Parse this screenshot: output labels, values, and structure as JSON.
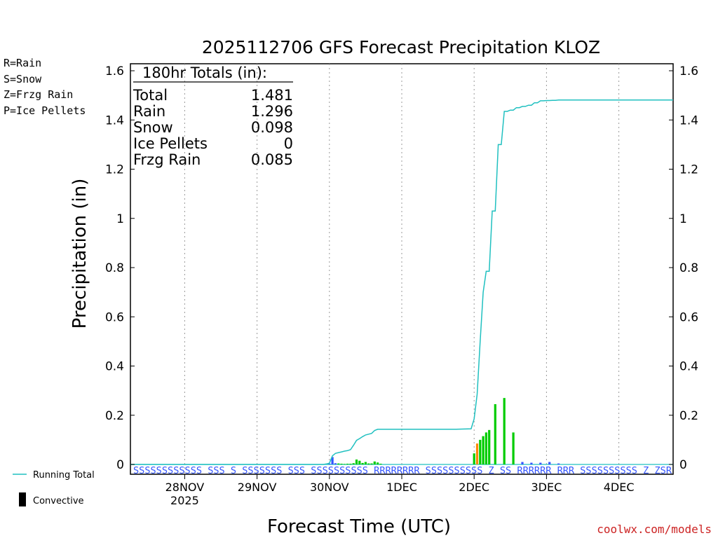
{
  "chart_data": {
    "type": "bar",
    "title": "2025112706 GFS Forecast Precipitation KLOZ",
    "xlabel": "Forecast Time (UTC)",
    "ylabel": "Precipitation (in)",
    "ylim": [
      0,
      1.6
    ],
    "y_ticks": [
      0,
      0.2,
      0.4,
      0.6,
      0.8,
      1,
      1.2,
      1.4,
      1.6
    ],
    "y_tick_labels": [
      "0",
      "0.2",
      "0.4",
      "0.6",
      "0.8",
      "1",
      "1.2",
      "1.4",
      "1.6"
    ],
    "x_range_hours": [
      0,
      180
    ],
    "x_ticks": [
      {
        "hour": 18,
        "label": "28NOV",
        "sublabel": "2025"
      },
      {
        "hour": 42,
        "label": "29NOV",
        "sublabel": ""
      },
      {
        "hour": 66,
        "label": "30NOV",
        "sublabel": ""
      },
      {
        "hour": 90,
        "label": "1DEC",
        "sublabel": ""
      },
      {
        "hour": 114,
        "label": "2DEC",
        "sublabel": ""
      },
      {
        "hour": 138,
        "label": "3DEC",
        "sublabel": ""
      },
      {
        "hour": 162,
        "label": "4DEC",
        "sublabel": ""
      }
    ],
    "grid": true,
    "legend_types": [
      {
        "label": "R=Rain",
        "color": "#00cc00"
      },
      {
        "label": "S=Snow",
        "color": "#3355ff"
      },
      {
        "label": "Z=Frzg Rain",
        "color": "#ff8800"
      },
      {
        "label": "P=Ice Pellets",
        "color": "#ff1493"
      }
    ],
    "legend_series": {
      "running_total": "Running Total",
      "convective": "Convective"
    },
    "totals": {
      "header": "180hr Totals (in):",
      "rows": [
        {
          "label": "Total",
          "value": "1.481"
        },
        {
          "label": "Rain",
          "value": "1.296"
        },
        {
          "label": "Snow",
          "value": "0.098"
        },
        {
          "label": "Ice Pellets",
          "value": "0"
        },
        {
          "label": "Frzg Rain",
          "value": "0.085"
        }
      ]
    },
    "bars": [
      {
        "hour": 66,
        "value": 0.003,
        "type": "S"
      },
      {
        "hour": 67,
        "value": 0.03,
        "type": "S"
      },
      {
        "hour": 68,
        "value": 0.005,
        "type": "S"
      },
      {
        "hour": 69,
        "value": 0.004,
        "type": "R"
      },
      {
        "hour": 70,
        "value": 0.003,
        "type": "R"
      },
      {
        "hour": 71,
        "value": 0.002,
        "type": "R"
      },
      {
        "hour": 72,
        "value": 0.003,
        "type": "R"
      },
      {
        "hour": 73,
        "value": 0.003,
        "type": "R"
      },
      {
        "hour": 74,
        "value": 0.005,
        "type": "R"
      },
      {
        "hour": 75,
        "value": 0.02,
        "type": "R"
      },
      {
        "hour": 76,
        "value": 0.015,
        "type": "R"
      },
      {
        "hour": 77,
        "value": 0.006,
        "type": "R"
      },
      {
        "hour": 78,
        "value": 0.01,
        "type": "R"
      },
      {
        "hour": 79,
        "value": 0.004,
        "type": "R"
      },
      {
        "hour": 80,
        "value": 0.004,
        "type": "R"
      },
      {
        "hour": 81,
        "value": 0.012,
        "type": "R"
      },
      {
        "hour": 82,
        "value": 0.008,
        "type": "R"
      },
      {
        "hour": 83,
        "value": 0.003,
        "type": "R"
      },
      {
        "hour": 114,
        "value": 0.045,
        "type": "R"
      },
      {
        "hour": 115,
        "value": 0.085,
        "type": "Z"
      },
      {
        "hour": 116,
        "value": 0.1,
        "type": "R"
      },
      {
        "hour": 117,
        "value": 0.115,
        "type": "R"
      },
      {
        "hour": 118,
        "value": 0.13,
        "type": "R"
      },
      {
        "hour": 119,
        "value": 0.14,
        "type": "R"
      },
      {
        "hour": 121,
        "value": 0.245,
        "type": "R"
      },
      {
        "hour": 124,
        "value": 0.27,
        "type": "R"
      },
      {
        "hour": 127,
        "value": 0.13,
        "type": "R"
      },
      {
        "hour": 130,
        "value": 0.01,
        "type": "S"
      },
      {
        "hour": 133,
        "value": 0.007,
        "type": "S"
      },
      {
        "hour": 136,
        "value": 0.007,
        "type": "S"
      },
      {
        "hour": 139,
        "value": 0.01,
        "type": "S"
      },
      {
        "hour": 142,
        "value": 0.004,
        "type": "S"
      }
    ],
    "running_total": {
      "x": [
        0,
        64,
        65,
        66,
        67,
        68,
        69,
        70,
        71,
        72,
        73,
        74,
        75,
        76,
        77,
        78,
        79,
        80,
        81,
        82,
        83,
        84,
        90,
        96,
        102,
        108,
        113,
        114,
        115,
        116,
        117,
        118,
        119,
        120,
        121,
        122,
        123,
        124,
        125,
        126,
        127,
        128,
        129,
        130,
        131,
        132,
        133,
        134,
        135,
        136,
        137,
        138,
        139,
        140,
        141,
        142,
        144,
        160,
        180
      ],
      "y": [
        0,
        0,
        0.002,
        0.005,
        0.035,
        0.045,
        0.048,
        0.051,
        0.054,
        0.056,
        0.06,
        0.078,
        0.098,
        0.105,
        0.113,
        0.12,
        0.123,
        0.126,
        0.138,
        0.143,
        0.143,
        0.143,
        0.143,
        0.143,
        0.143,
        0.143,
        0.145,
        0.185,
        0.285,
        0.5,
        0.7,
        0.785,
        0.785,
        1.03,
        1.03,
        1.3,
        1.3,
        1.435,
        1.435,
        1.44,
        1.44,
        1.45,
        1.45,
        1.455,
        1.455,
        1.46,
        1.46,
        1.47,
        1.47,
        1.478,
        1.478,
        1.479,
        1.479,
        1.48,
        1.48,
        1.481,
        1.481,
        1.481,
        1.481
      ]
    },
    "type_letters_row": "SSSSSSSSSSSS SSS S SSSSSSS SSS SSSSSSSSSS RRRRRRRR SSSSSSSSSS Z SS RRRRRR RRR SSSSSSSSSS Z ZSR",
    "credit": "coolwx.com/models"
  }
}
